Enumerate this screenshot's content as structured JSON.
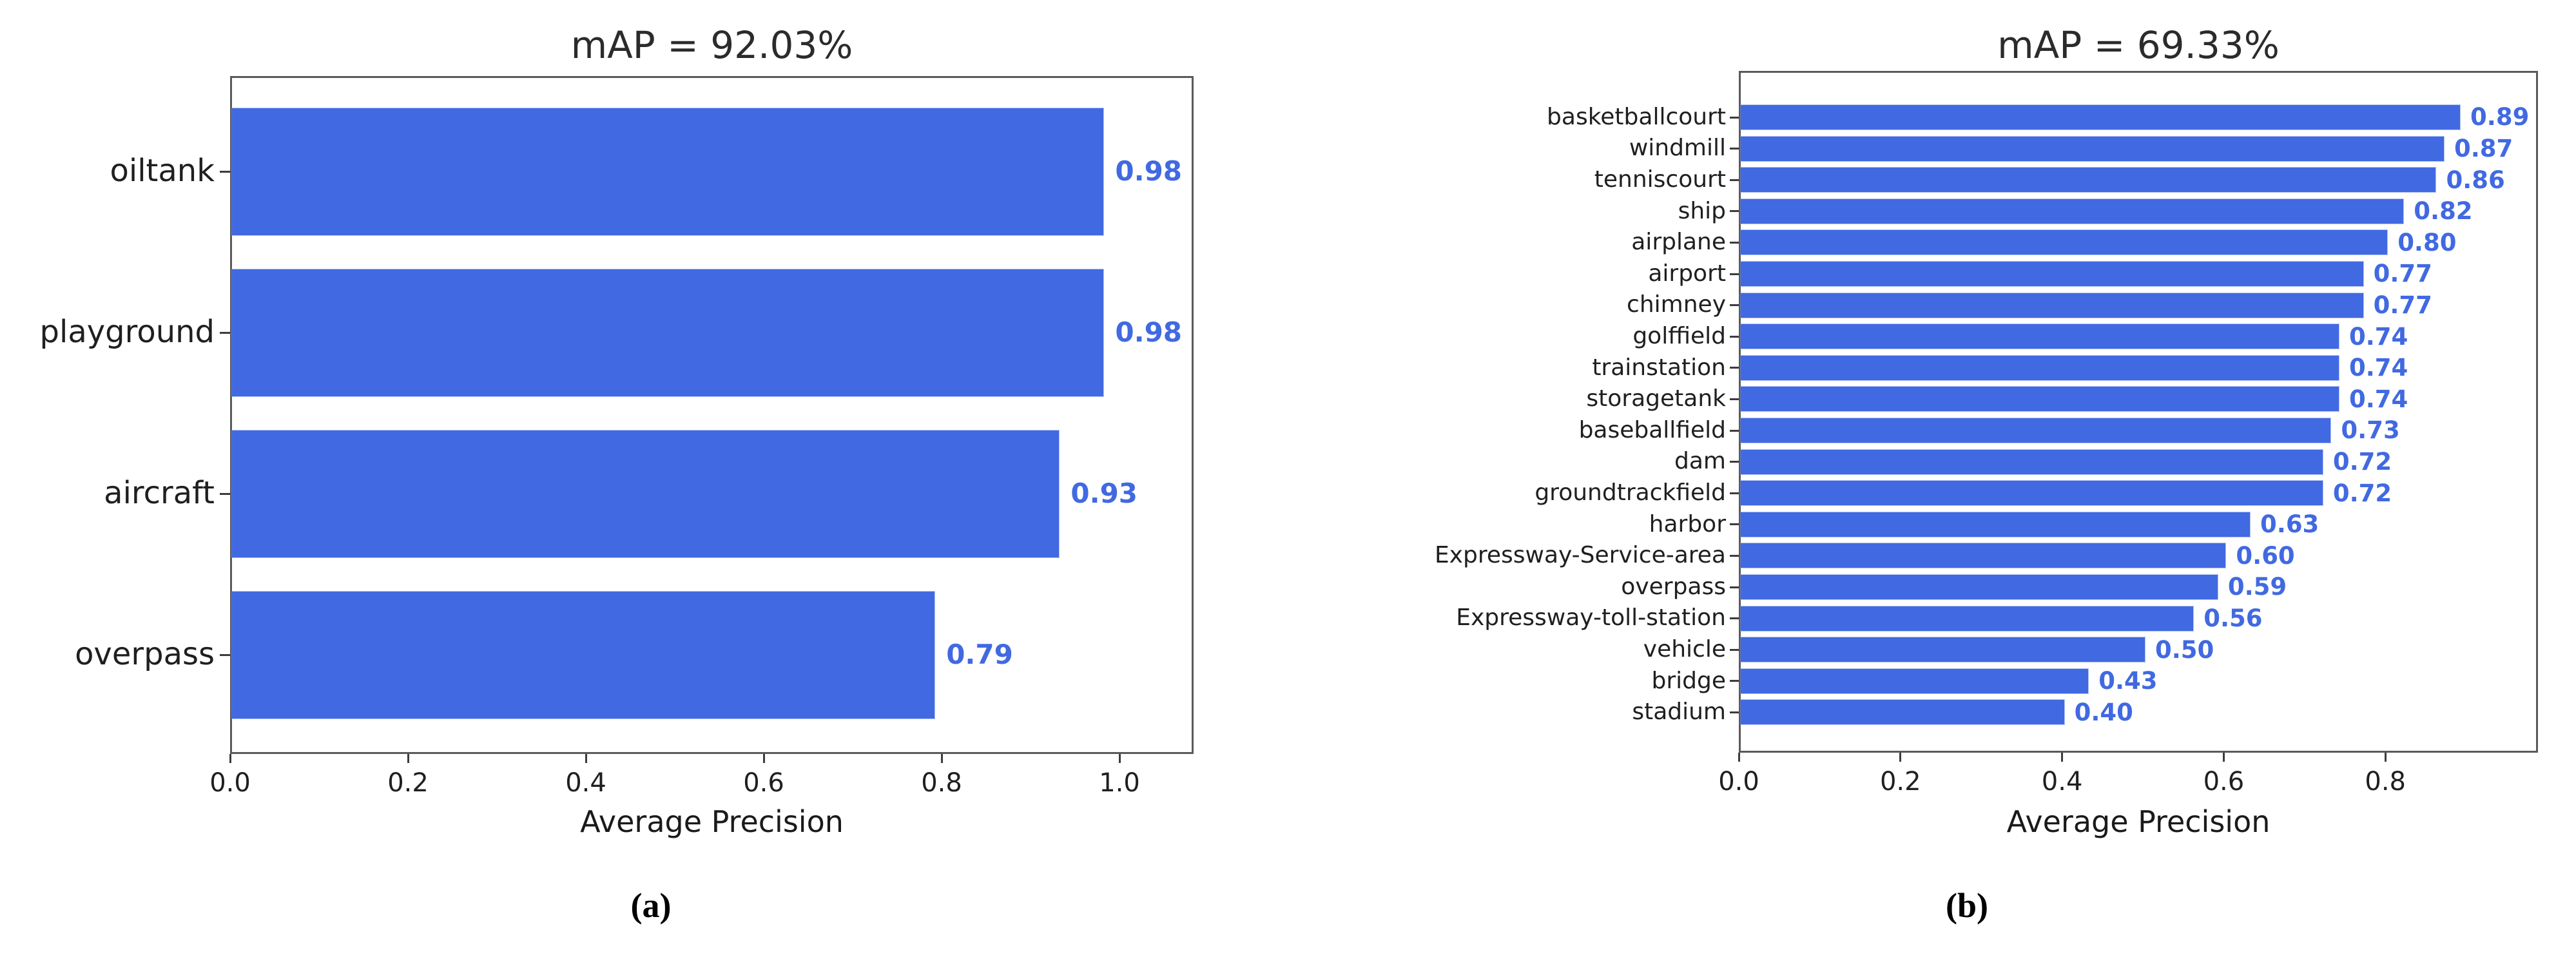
{
  "figure": {
    "background": "#ffffff",
    "captions": [
      {
        "label": "(a)"
      },
      {
        "label": "(b)"
      }
    ]
  },
  "chart_data": [
    {
      "type": "bar",
      "orientation": "horizontal",
      "title": "mAP = 92.03%",
      "xlabel": "Average Precision",
      "categories": [
        "oiltank",
        "playground",
        "aircraft",
        "overpass"
      ],
      "values": [
        0.98,
        0.98,
        0.93,
        0.79
      ],
      "value_labels": [
        "0.98",
        "0.98",
        "0.93",
        "0.79"
      ],
      "xlim": [
        0.0,
        1.08
      ],
      "xtick_values": [
        0.0,
        0.2,
        0.4,
        0.6,
        0.8,
        1.0
      ],
      "xtick_labels": [
        "0.0",
        "0.2",
        "0.4",
        "0.6",
        "0.8",
        "1.0"
      ],
      "grid": false,
      "legend": null,
      "bar_color": "#4169e1",
      "value_label_color": "#4169e1",
      "text_color": "#1f1f1f"
    },
    {
      "type": "bar",
      "orientation": "horizontal",
      "title": "mAP = 69.33%",
      "xlabel": "Average Precision",
      "categories": [
        "basketballcourt",
        "windmill",
        "tenniscourt",
        "ship",
        "airplane",
        "airport",
        "chimney",
        "golffield",
        "trainstation",
        "storagetank",
        "baseballfield",
        "dam",
        "groundtrackfield",
        "harbor",
        "Expressway-Service-area",
        "overpass",
        "Expressway-toll-station",
        "vehicle",
        "bridge",
        "stadium"
      ],
      "values": [
        0.89,
        0.87,
        0.86,
        0.82,
        0.8,
        0.77,
        0.77,
        0.74,
        0.74,
        0.74,
        0.73,
        0.72,
        0.72,
        0.63,
        0.6,
        0.59,
        0.56,
        0.5,
        0.43,
        0.4
      ],
      "value_labels": [
        "0.89",
        "0.87",
        "0.86",
        "0.82",
        "0.80",
        "0.77",
        "0.77",
        "0.74",
        "0.74",
        "0.74",
        "0.73",
        "0.72",
        "0.72",
        "0.63",
        "0.60",
        "0.59",
        "0.56",
        "0.50",
        "0.43",
        "0.40"
      ],
      "xlim": [
        0.0,
        0.99
      ],
      "xtick_values": [
        0.0,
        0.2,
        0.4,
        0.6,
        0.8
      ],
      "xtick_labels": [
        "0.0",
        "0.2",
        "0.4",
        "0.6",
        "0.8"
      ],
      "grid": false,
      "legend": null,
      "bar_color": "#4169e1",
      "value_label_color": "#4169e1",
      "text_color": "#1f1f1f"
    }
  ]
}
